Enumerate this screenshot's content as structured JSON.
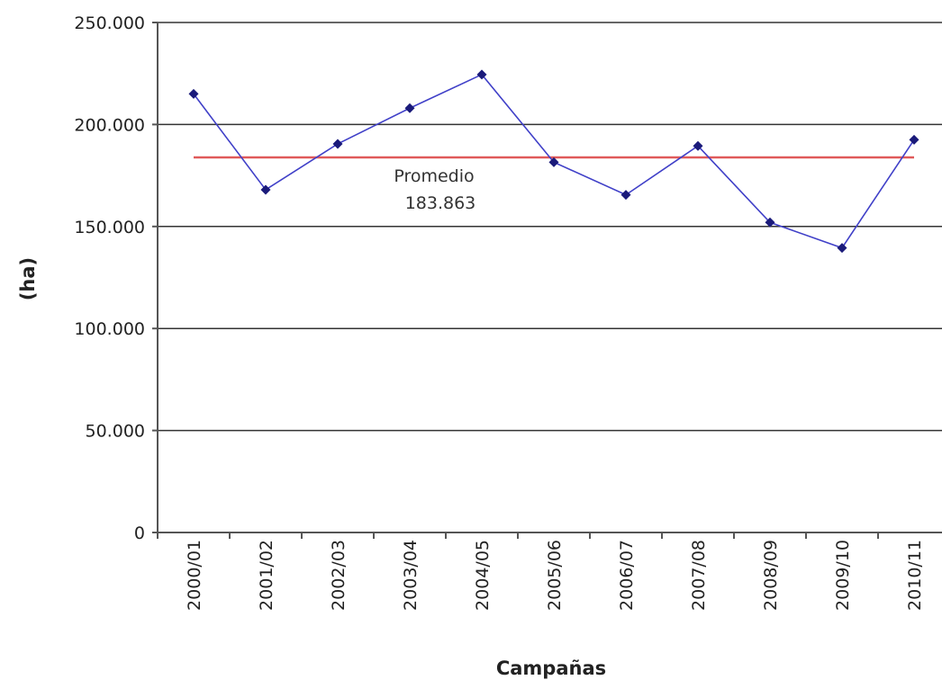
{
  "chart_data": {
    "type": "line",
    "title": "",
    "xlabel": "Campañas",
    "ylabel": "(ha)",
    "categories": [
      "2000/01",
      "2001/02",
      "2002/03",
      "2003/04",
      "2004/05",
      "2005/06",
      "2006/07",
      "2007/08",
      "2008/09",
      "2009/10",
      "2010/11"
    ],
    "series": [
      {
        "values": [
          215000,
          168000,
          190500,
          208000,
          224500,
          181500,
          165500,
          189500,
          152000,
          139500,
          192500
        ],
        "color": "#4040c8",
        "marker": "diamond",
        "marker_color": "#1a1a7a"
      }
    ],
    "average_line": {
      "value": 183863,
      "color": "#e05a5a"
    },
    "annotation": {
      "line1": "Promedio",
      "line2": "183.863"
    },
    "ylim": [
      0,
      250000
    ],
    "yticks": [
      0,
      50000,
      100000,
      150000,
      200000,
      250000
    ],
    "ytick_labels": [
      "0",
      "50.000",
      "100.000",
      "150.000",
      "200.000",
      "250.000"
    ],
    "grid": true,
    "legend": "none"
  }
}
